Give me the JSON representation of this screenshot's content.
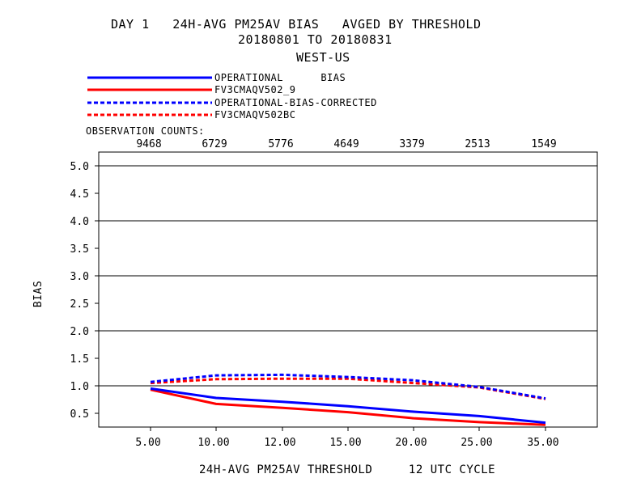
{
  "title": {
    "line1": "DAY 1   24H-AVG PM25AV BIAS   AVGED BY THRESHOLD",
    "line2": "20180801 TO 20180831",
    "line3": "WEST-US"
  },
  "legend": {
    "items": [
      {
        "label": "OPERATIONAL      BIAS",
        "color": "#0000ff",
        "dashed": false
      },
      {
        "label": "FV3CMAQV502_9",
        "color": "#ff0000",
        "dashed": false
      },
      {
        "label": "OPERATIONAL-BIAS-CORRECTED",
        "color": "#0000ff",
        "dashed": true
      },
      {
        "label": "FV3CMAQV502BC",
        "color": "#ff0000",
        "dashed": true
      }
    ]
  },
  "observation_counts": {
    "label": "OBSERVATION COUNTS:",
    "values": [
      "9468",
      "6729",
      "5776",
      "4649",
      "3379",
      "2513",
      "1549"
    ]
  },
  "chart_data": {
    "type": "line",
    "categories": [
      "5.00",
      "10.00",
      "12.00",
      "15.00",
      "20.00",
      "25.00",
      "35.00"
    ],
    "ylabel": "BIAS",
    "xlabel": "24H-AVG PM25AV THRESHOLD     12 UTC CYCLE",
    "ylim": [
      0.25,
      5.25
    ],
    "yticks": [
      "0.5",
      "1.0",
      "1.5",
      "2.0",
      "2.5",
      "3.0",
      "3.5",
      "4.0",
      "4.5",
      "5.0"
    ],
    "grid_lines_y": [
      1.0,
      2.0,
      3.0,
      4.0,
      5.0
    ],
    "series": [
      {
        "name": "OPERATIONAL      BIAS",
        "color": "#0000ff",
        "dashed": false,
        "values": [
          0.95,
          0.78,
          0.71,
          0.63,
          0.53,
          0.45,
          0.33
        ]
      },
      {
        "name": "FV3CMAQV502_9",
        "color": "#ff0000",
        "dashed": false,
        "values": [
          0.93,
          0.67,
          0.6,
          0.52,
          0.41,
          0.34,
          0.29
        ]
      },
      {
        "name": "OPERATIONAL-BIAS-CORRECTED",
        "color": "#0000ff",
        "dashed": true,
        "values": [
          1.07,
          1.19,
          1.2,
          1.16,
          1.1,
          0.98,
          0.77
        ]
      },
      {
        "name": "FV3CMAQV502BC",
        "color": "#ff0000",
        "dashed": true,
        "values": [
          1.05,
          1.12,
          1.13,
          1.13,
          1.05,
          0.97,
          0.76
        ]
      }
    ]
  }
}
